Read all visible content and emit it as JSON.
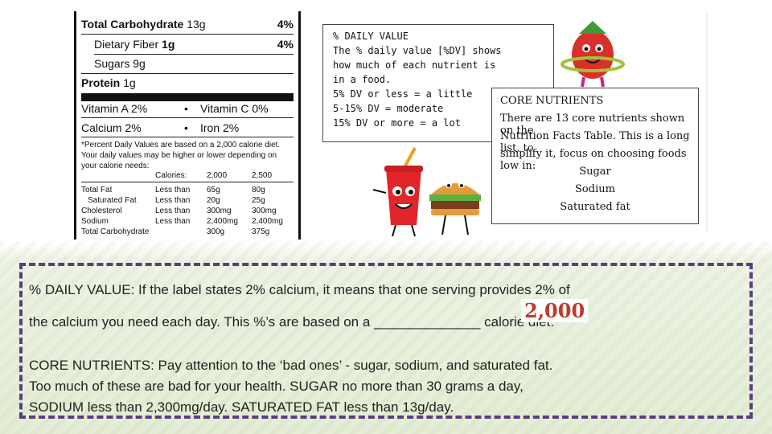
{
  "nutrition_label": {
    "rows": [
      {
        "name": "Total Carbohydrate",
        "amount": "13g",
        "pct": "4%"
      },
      {
        "name": "Dietary Fiber",
        "amount": "1g",
        "pct": "4%"
      },
      {
        "name": "Sugars",
        "amount": "9g"
      },
      {
        "name": "Protein",
        "amount": "1g"
      },
      {
        "name": "Vitamin A 2%",
        "bullet": "•",
        "pair": "Vitamin C 0%"
      },
      {
        "name": "Calcium 2%",
        "bullet": "•",
        "pair": "Iron 2%"
      }
    ],
    "footnote": "*Percent Daily Values are based on a 2,000 calorie diet. Your daily values may be higher or lower depending on your calorie needs:",
    "footer_header": {
      "label": "Calories:",
      "c1": "2,000",
      "c2": "2,500"
    },
    "footer_rows": [
      {
        "label": "Total Fat",
        "cond": "Less than",
        "c1": "65g",
        "c2": "80g"
      },
      {
        "label": "Saturated Fat",
        "cond": "Less than",
        "c1": "20g",
        "c2": "25g"
      },
      {
        "label": "Cholesterol",
        "cond": "Less than",
        "c1": "300mg",
        "c2": "300mg"
      },
      {
        "label": "Sodium",
        "cond": "Less than",
        "c1": "2,400mg",
        "c2": "2,400mg"
      },
      {
        "label": "Total Carbohydrate",
        "cond": "",
        "c1": "300g",
        "c2": "375g"
      }
    ]
  },
  "dv_box": {
    "lines": [
      "% DAILY VALUE",
      "The % daily value [%DV] shows",
      "how much of each nutrient is",
      "in a food.",
      "5% DV or less = a little",
      "5-15% DV = moderate",
      "15% DV or more = a lot"
    ]
  },
  "core_box": {
    "title": "CORE NUTRIENTS",
    "lines": [
      "There are 13 core nutrients shown on the",
      "Nutrition Facts Table. This is a long list, to",
      "simplify it, focus on choosing foods low in:"
    ],
    "items": [
      "Sugar",
      "Sodium",
      "Saturated fat"
    ]
  },
  "main": {
    "p1_line1": "% DAILY VALUE:  If the label states 2% calcium, it means that one serving provides 2% of",
    "p1_line2": "the calcium you need each day.  This %’s are based on a ______________ calorie diet.",
    "stamp": "2,000",
    "p2_line1": "CORE NUTRIENTS:  Pay attention to the ‘bad ones’ - sugar, sodium, and saturated fat.",
    "p2_line2": "Too much of these are bad for your health.  SUGAR no more than 30 grams a day,",
    "p2_line3": "SODIUM less than 2,300mg/day.  SATURATED FAT less than 13g/day."
  },
  "colors": {
    "border": "#5b3d82",
    "stamp": "#c0392b",
    "strawberry": "#d9302a",
    "cup": "#e0262a"
  },
  "icons": [
    "strawberry-character-icon",
    "soda-cup-character-icon",
    "burger-character-icon"
  ]
}
